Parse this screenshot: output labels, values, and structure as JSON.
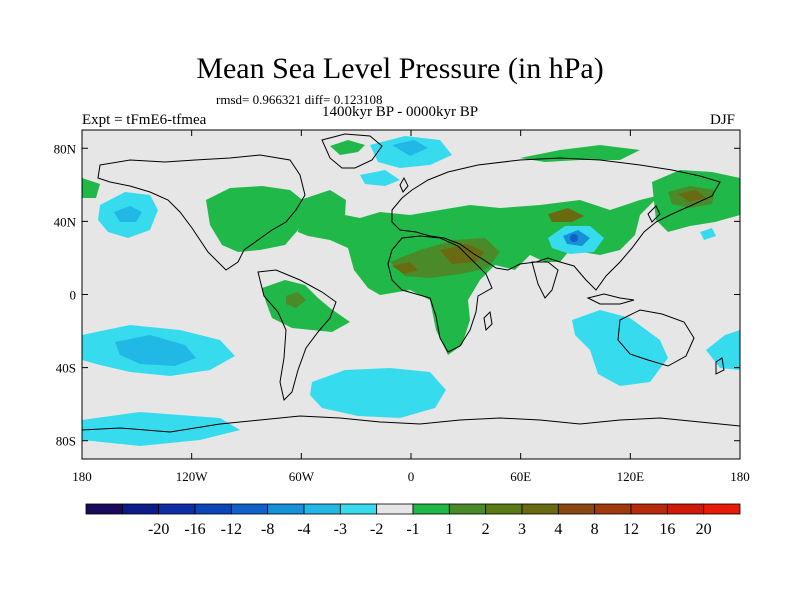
{
  "title": "Mean Sea Level Pressure (in hPa)",
  "stats_line": "rmsd= 0.966321 diff= 0.123108",
  "period": "1400kyr BP - 0000kyr BP",
  "experiment": "Expt = tFmE6-tfmea",
  "season": "DJF",
  "map": {
    "lon_range": [
      -180,
      180
    ],
    "lat_range": [
      -90,
      90
    ],
    "lat_ticks": [
      {
        "value": 80,
        "label": "80N"
      },
      {
        "value": 40,
        "label": "40N"
      },
      {
        "value": 0,
        "label": "0"
      },
      {
        "value": -40,
        "label": "40S"
      },
      {
        "value": -80,
        "label": "80S"
      }
    ],
    "lon_ticks": [
      {
        "value": -180,
        "label": "180"
      },
      {
        "value": -120,
        "label": "120W"
      },
      {
        "value": -60,
        "label": "60W"
      },
      {
        "value": 0,
        "label": "0"
      },
      {
        "value": 60,
        "label": "60E"
      },
      {
        "value": 120,
        "label": "120E"
      },
      {
        "value": 180,
        "label": "180"
      }
    ]
  },
  "colorbar": {
    "colors": [
      "#1a0a5e",
      "#0c1a8a",
      "#0c2fa6",
      "#0a46b8",
      "#1060c8",
      "#1690d6",
      "#22b8e6",
      "#36dcee",
      "#e6e6e6",
      "#20b848",
      "#4a8a28",
      "#5a7a14",
      "#6a6a10",
      "#8a4810",
      "#a03a0c",
      "#b82a0a",
      "#d01a08",
      "#e81a08"
    ],
    "labels": [
      "-20",
      "-16",
      "-12",
      "-8",
      "-4",
      "-3",
      "-2",
      "-1",
      "1",
      "2",
      "3",
      "4",
      "8",
      "12",
      "16",
      "20"
    ]
  }
}
